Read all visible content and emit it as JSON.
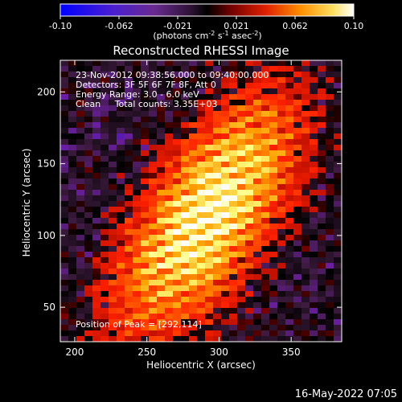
{
  "colorbar": {
    "ticks": [
      "-0.10",
      "-0.062",
      "-0.021",
      "0.021",
      "0.062",
      "0.10"
    ],
    "units_label": "(photons cm",
    "units_exp1": "-2",
    "units_mid": " s",
    "units_exp2": "-1",
    "units_end": " asec",
    "units_exp3": "-2",
    "units_close": ")"
  },
  "title": "Reconstructed RHESSI Image",
  "annotations": {
    "time": "23-Nov-2012 09:38:56.000 to 09:40:00.000",
    "detectors": "Detectors: 3F 5F 6F 7F 8F, Att 0",
    "energy": "Energy Range: 3.0 - 6.0 keV",
    "clean": "Clean     Total counts: 3.35E+03",
    "peak": "Position of Peak = [292,114]"
  },
  "axes": {
    "x_label": "Heliocentric X (arcsec)",
    "y_label": "Heliocentric Y (arcsec)",
    "x_ticks": [
      "200",
      "250",
      "300",
      "350"
    ],
    "y_ticks": [
      "50",
      "100",
      "150",
      "200"
    ]
  },
  "footer_timestamp": "16-May-2022 07:05",
  "chart_data": {
    "type": "heatmap",
    "title": "Reconstructed RHESSI Image",
    "xlabel": "Heliocentric X (arcsec)",
    "ylabel": "Heliocentric Y (arcsec)",
    "xlim": [
      190,
      385
    ],
    "ylim": [
      26,
      222
    ],
    "colorbar_range": [
      -0.1,
      0.1
    ],
    "peak": [
      292,
      114
    ],
    "colormap": [
      "#0000ff",
      "#6a1fa0",
      "#3b1a3c",
      "#000000",
      "#7a0000",
      "#ff2000",
      "#ffa000",
      "#ffff80",
      "#ffffff"
    ]
  }
}
